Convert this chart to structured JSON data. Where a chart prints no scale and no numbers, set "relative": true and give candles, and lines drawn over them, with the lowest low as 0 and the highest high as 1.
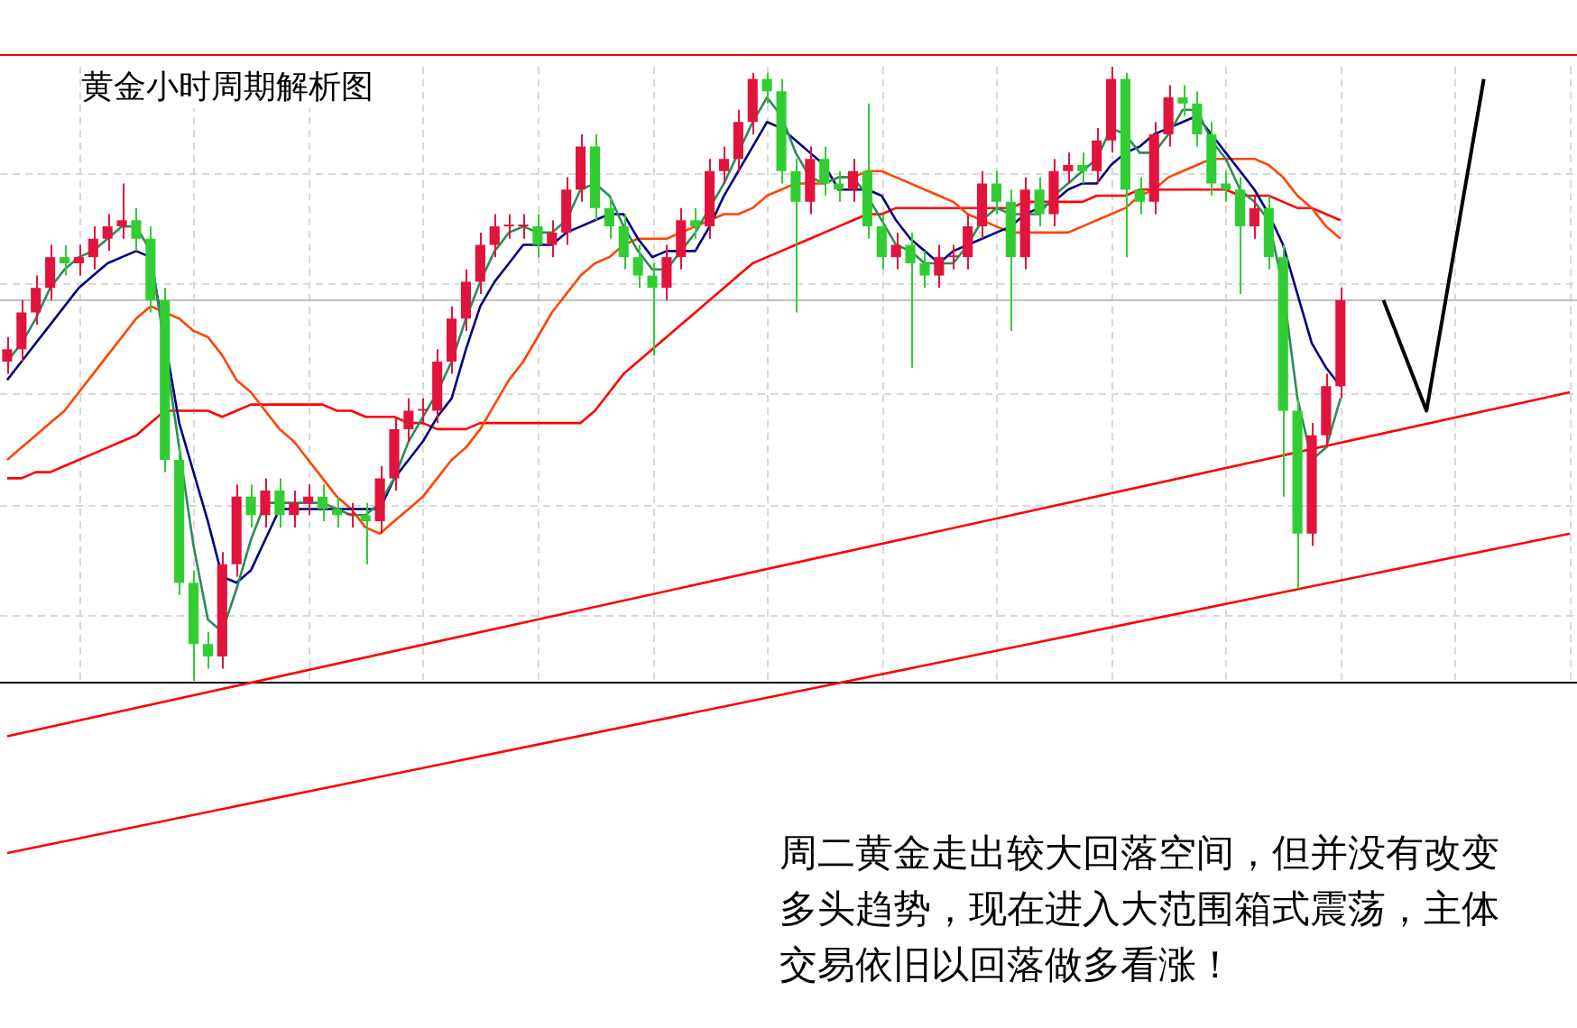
{
  "chart_data": {
    "type": "candlestick",
    "title": "黄金小时周期解析图",
    "relative": true,
    "grid": true,
    "legend": false,
    "marker": "none",
    "annotations": [
      "周二黄金走出较大回落空间，但并没有改变多头趋势，现在进入大范围箱式震荡，主体交易依旧以回落做多看涨！"
    ],
    "categories": [
      null,
      null,
      null,
      null,
      null,
      null,
      null,
      null,
      null,
      null,
      null,
      null,
      null,
      null,
      null,
      null,
      null,
      null,
      null,
      null,
      null,
      null,
      null,
      null,
      null,
      null,
      null,
      null,
      null,
      null,
      null,
      null,
      null,
      null,
      null,
      null,
      null,
      null,
      null,
      null,
      null,
      null,
      null,
      null,
      null,
      null,
      null,
      null,
      null,
      null,
      null,
      null,
      null,
      null,
      null,
      null,
      null,
      null,
      null,
      null,
      null,
      null,
      null,
      null,
      null,
      null,
      null,
      null,
      null,
      null,
      null,
      null,
      null,
      null,
      null,
      null,
      null,
      null,
      null,
      null,
      null,
      null,
      null,
      null,
      null,
      null,
      null,
      null,
      null,
      null,
      null,
      null,
      null,
      null,
      null,
      null,
      null,
      null,
      null,
      null,
      null,
      null,
      null,
      null,
      null,
      null,
      null,
      null,
      null,
      null
    ],
    "ohlc": [
      [
        0.52,
        0.56,
        0.5,
        0.54
      ],
      [
        0.54,
        0.62,
        0.52,
        0.6
      ],
      [
        0.6,
        0.66,
        0.58,
        0.64
      ],
      [
        0.64,
        0.71,
        0.62,
        0.69
      ],
      [
        0.69,
        0.71,
        0.66,
        0.68
      ],
      [
        0.68,
        0.71,
        0.66,
        0.69
      ],
      [
        0.69,
        0.74,
        0.67,
        0.72
      ],
      [
        0.72,
        0.76,
        0.7,
        0.74
      ],
      [
        0.74,
        0.81,
        0.72,
        0.75
      ],
      [
        0.75,
        0.77,
        0.7,
        0.72
      ],
      [
        0.72,
        0.74,
        0.6,
        0.62
      ],
      [
        0.62,
        0.64,
        0.34,
        0.36
      ],
      [
        0.36,
        0.38,
        0.14,
        0.16
      ],
      [
        0.16,
        0.18,
        0,
        0.06
      ],
      [
        0.06,
        0.08,
        0.02,
        0.04
      ],
      [
        0.04,
        0.21,
        0.02,
        0.19
      ],
      [
        0.19,
        0.32,
        0.17,
        0.3
      ],
      [
        0.3,
        0.32,
        0.25,
        0.27
      ],
      [
        0.27,
        0.33,
        0.25,
        0.31
      ],
      [
        0.31,
        0.33,
        0.25,
        0.27
      ],
      [
        0.27,
        0.31,
        0.25,
        0.29
      ],
      [
        0.29,
        0.32,
        0.27,
        0.3
      ],
      [
        0.3,
        0.32,
        0.26,
        0.28
      ],
      [
        0.28,
        0.3,
        0.25,
        0.27
      ],
      [
        0.27,
        0.29,
        0.25,
        0.27
      ],
      [
        0.27,
        0.29,
        0.19,
        0.26
      ],
      [
        0.26,
        0.35,
        0.24,
        0.33
      ],
      [
        0.33,
        0.43,
        0.31,
        0.41
      ],
      [
        0.41,
        0.46,
        0.39,
        0.44
      ],
      [
        0.44,
        0.46,
        0.42,
        0.44
      ],
      [
        0.44,
        0.54,
        0.42,
        0.52
      ],
      [
        0.52,
        0.61,
        0.5,
        0.59
      ],
      [
        0.59,
        0.67,
        0.57,
        0.65
      ],
      [
        0.65,
        0.73,
        0.63,
        0.71
      ],
      [
        0.71,
        0.76,
        0.69,
        0.74
      ],
      [
        0.74,
        0.76,
        0.72,
        0.74
      ],
      [
        0.74,
        0.76,
        0.72,
        0.74
      ],
      [
        0.74,
        0.76,
        0.69,
        0.71
      ],
      [
        0.71,
        0.75,
        0.69,
        0.73
      ],
      [
        0.73,
        0.82,
        0.71,
        0.8
      ],
      [
        0.8,
        0.89,
        0.78,
        0.87
      ],
      [
        0.87,
        0.89,
        0.75,
        0.77
      ],
      [
        0.77,
        0.79,
        0.72,
        0.74
      ],
      [
        0.74,
        0.76,
        0.67,
        0.69
      ],
      [
        0.69,
        0.71,
        0.64,
        0.66
      ],
      [
        0.66,
        0.68,
        0.53,
        0.64
      ],
      [
        0.64,
        0.71,
        0.62,
        0.69
      ],
      [
        0.69,
        0.77,
        0.67,
        0.75
      ],
      [
        0.75,
        0.77,
        0.72,
        0.74
      ],
      [
        0.74,
        0.85,
        0.72,
        0.83
      ],
      [
        0.83,
        0.87,
        0.81,
        0.85
      ],
      [
        0.85,
        0.93,
        0.83,
        0.91
      ],
      [
        0.91,
        0.99,
        0.89,
        0.98
      ],
      [
        0.98,
        0.99,
        0.94,
        0.96
      ],
      [
        0.96,
        0.98,
        0.81,
        0.83
      ],
      [
        0.83,
        0.85,
        0.6,
        0.78
      ],
      [
        0.78,
        0.87,
        0.76,
        0.85
      ],
      [
        0.85,
        0.87,
        0.79,
        0.81
      ],
      [
        0.81,
        0.83,
        0.78,
        0.8
      ],
      [
        0.8,
        0.85,
        0.78,
        0.83
      ],
      [
        0.83,
        0.94,
        0.72,
        0.74
      ],
      [
        0.74,
        0.76,
        0.67,
        0.69
      ],
      [
        0.69,
        0.73,
        0.67,
        0.71
      ],
      [
        0.71,
        0.73,
        0.51,
        0.68
      ],
      [
        0.68,
        0.7,
        0.64,
        0.66
      ],
      [
        0.66,
        0.71,
        0.64,
        0.69
      ],
      [
        0.69,
        0.71,
        0.67,
        0.69
      ],
      [
        0.69,
        0.76,
        0.67,
        0.74
      ],
      [
        0.74,
        0.83,
        0.72,
        0.81
      ],
      [
        0.81,
        0.83,
        0.76,
        0.78
      ],
      [
        0.78,
        0.8,
        0.57,
        0.69
      ],
      [
        0.69,
        0.82,
        0.67,
        0.8
      ],
      [
        0.8,
        0.82,
        0.74,
        0.76
      ],
      [
        0.76,
        0.85,
        0.74,
        0.83
      ],
      [
        0.83,
        0.86,
        0.81,
        0.84
      ],
      [
        0.84,
        0.86,
        0.81,
        0.83
      ],
      [
        0.83,
        0.9,
        0.81,
        0.88
      ],
      [
        0.88,
        1.0,
        0.86,
        0.98
      ],
      [
        0.98,
        0.99,
        0.69,
        0.8
      ],
      [
        0.8,
        0.82,
        0.76,
        0.78
      ],
      [
        0.78,
        0.91,
        0.76,
        0.89
      ],
      [
        0.89,
        0.97,
        0.87,
        0.95
      ],
      [
        0.95,
        0.97,
        0.92,
        0.94
      ],
      [
        0.94,
        0.96,
        0.87,
        0.89
      ],
      [
        0.89,
        0.91,
        0.79,
        0.81
      ],
      [
        0.81,
        0.83,
        0.78,
        0.8
      ],
      [
        0.8,
        0.82,
        0.63,
        0.74
      ],
      [
        0.74,
        0.79,
        0.72,
        0.77
      ],
      [
        0.77,
        0.79,
        0.67,
        0.69
      ],
      [
        0.69,
        0.71,
        0.3,
        0.44
      ],
      [
        0.44,
        0.46,
        0.15,
        0.24
      ],
      [
        0.24,
        0.42,
        0.22,
        0.4
      ],
      [
        0.4,
        0.5,
        0.38,
        0.48
      ],
      [
        0.48,
        0.64,
        0.46,
        0.62
      ],
      null,
      null,
      null,
      null,
      null,
      null,
      null,
      null,
      null,
      null,
      null,
      null,
      null,
      null,
      null,
      null
    ],
    "series": [
      {
        "type": "line",
        "color": "#2e8b57",
        "values": [
          0.52,
          0.55,
          0.59,
          0.64,
          0.67,
          0.69,
          0.7,
          0.72,
          0.74,
          0.74,
          0.7,
          null,
          0.38,
          0.22,
          0.1,
          0.08,
          0.15,
          0.23,
          0.29,
          0.29,
          0.29,
          0.29,
          0.29,
          0.28,
          0.27,
          0.27,
          0.29,
          0.33,
          0.39,
          0.43,
          0.47,
          0.52,
          0.59,
          0.65,
          0.7,
          0.73,
          0.74,
          0.73,
          0.73,
          0.75,
          0.8,
          0.81,
          0.79,
          0.74,
          0.7,
          0.67,
          0.67,
          0.7,
          0.73,
          0.77,
          0.81,
          0.86,
          0.91,
          0.95,
          0.92,
          0.86,
          0.82,
          0.81,
          0.82,
          0.82,
          0.79,
          0.75,
          0.71,
          0.7,
          0.68,
          0.68,
          0.68,
          0.71,
          0.75,
          0.77,
          0.76,
          0.76,
          0.76,
          0.79,
          0.81,
          0.83,
          0.85,
          0.9,
          0.89,
          0.86,
          0.86,
          0.89,
          0.93,
          0.93,
          0.88,
          0.85,
          0.8,
          0.78,
          0.75,
          0.64,
          0.46,
          0.36,
          0.38,
          0.46,
          null,
          null,
          null,
          null,
          null,
          null,
          null,
          null,
          null,
          null,
          null,
          null,
          null,
          null,
          null,
          null
        ]
      },
      {
        "type": "line",
        "color": "#000080",
        "values": [
          0.49,
          0.52,
          0.55,
          0.58,
          0.61,
          0.64,
          0.66,
          0.68,
          0.69,
          0.7,
          0.69,
          null,
          0.42,
          0.34,
          0.26,
          0.17,
          0.16,
          0.18,
          0.23,
          0.28,
          0.28,
          0.28,
          0.28,
          0.28,
          0.28,
          0.28,
          0.28,
          0.33,
          0.36,
          0.39,
          0.43,
          0.46,
          0.54,
          0.61,
          0.65,
          0.68,
          0.71,
          0.71,
          0.71,
          0.73,
          0.74,
          0.75,
          0.76,
          0.76,
          0.72,
          0.69,
          0.7,
          0.7,
          0.7,
          0.74,
          0.79,
          0.83,
          0.87,
          0.91,
          0.9,
          0.88,
          0.86,
          0.84,
          0.8,
          0.8,
          0.8,
          0.79,
          0.75,
          0.72,
          0.7,
          0.68,
          0.7,
          0.71,
          0.72,
          0.73,
          0.74,
          0.76,
          0.77,
          0.78,
          0.8,
          0.81,
          0.81,
          0.84,
          0.86,
          0.87,
          0.89,
          0.9,
          0.91,
          0.92,
          0.89,
          0.86,
          0.83,
          0.8,
          0.76,
          0.71,
          0.63,
          0.55,
          0.51,
          0.48,
          null,
          null,
          null,
          null,
          null,
          null,
          null,
          null,
          null,
          null,
          null,
          null,
          null,
          null,
          null,
          null
        ]
      },
      {
        "type": "line",
        "color": "#ff4500",
        "values": [
          0.36,
          0.38,
          0.4,
          0.42,
          0.44,
          0.47,
          0.5,
          0.53,
          0.56,
          0.59,
          0.61,
          0.6,
          0.59,
          0.57,
          0.56,
          0.53,
          0.49,
          0.47,
          0.44,
          0.41,
          0.39,
          0.36,
          0.33,
          0.3,
          0.28,
          0.25,
          0.24,
          0.26,
          0.28,
          0.3,
          0.33,
          0.36,
          0.38,
          0.41,
          0.45,
          0.49,
          0.52,
          0.56,
          0.6,
          0.63,
          0.66,
          0.68,
          0.69,
          0.71,
          0.72,
          0.72,
          0.72,
          0.73,
          0.74,
          0.75,
          0.76,
          0.76,
          0.77,
          0.79,
          0.8,
          0.81,
          0.81,
          0.81,
          0.82,
          0.82,
          0.83,
          0.83,
          0.82,
          0.81,
          0.8,
          0.79,
          0.78,
          0.76,
          0.75,
          0.74,
          0.73,
          0.73,
          0.73,
          0.73,
          0.73,
          0.74,
          0.75,
          0.76,
          0.77,
          0.79,
          0.8,
          0.82,
          0.83,
          0.84,
          0.85,
          0.85,
          0.85,
          0.85,
          0.84,
          0.82,
          0.79,
          0.77,
          0.74,
          0.72,
          null,
          null,
          null,
          null,
          null,
          null,
          null,
          null,
          null,
          null,
          null,
          null,
          null,
          null,
          null,
          null
        ]
      },
      {
        "type": "line",
        "color": "#ff0000",
        "values": [
          0.33,
          0.33,
          0.34,
          0.34,
          0.35,
          0.36,
          0.37,
          0.38,
          0.39,
          0.4,
          0.42,
          0.44,
          0.44,
          0.44,
          0.44,
          0.43,
          0.44,
          0.45,
          0.45,
          0.45,
          0.45,
          0.45,
          0.45,
          0.44,
          0.44,
          0.43,
          0.43,
          0.43,
          0.42,
          0.42,
          0.41,
          0.41,
          0.41,
          0.42,
          0.42,
          0.42,
          0.42,
          0.42,
          0.42,
          0.42,
          0.42,
          0.44,
          0.47,
          0.5,
          0.52,
          0.54,
          0.56,
          0.58,
          0.6,
          0.62,
          0.64,
          0.66,
          0.68,
          0.69,
          0.7,
          0.71,
          0.72,
          0.73,
          0.74,
          0.75,
          0.76,
          0.76,
          0.77,
          0.77,
          0.77,
          0.77,
          0.77,
          0.77,
          0.77,
          0.77,
          0.77,
          0.78,
          0.78,
          0.78,
          0.78,
          0.78,
          0.79,
          0.79,
          0.79,
          0.8,
          0.8,
          0.8,
          0.8,
          0.8,
          0.8,
          0.8,
          0.79,
          0.79,
          0.79,
          0.78,
          0.77,
          0.77,
          0.76,
          0.75,
          null,
          null,
          null,
          null,
          null,
          null,
          null,
          null,
          null,
          null,
          null,
          null,
          null,
          null,
          null,
          null
        ]
      },
      {
        "type": "line",
        "color": "#ff0000",
        "values": [
          -0.09,
          null,
          null,
          null,
          null,
          null,
          null,
          null,
          null,
          null,
          null,
          null,
          null,
          null,
          null,
          null,
          null,
          null,
          null,
          null,
          null,
          null,
          null,
          null,
          null,
          null,
          null,
          null,
          null,
          null,
          null,
          null,
          null,
          null,
          null,
          null,
          null,
          null,
          null,
          null,
          null,
          null,
          null,
          null,
          null,
          null,
          null,
          null,
          null,
          null,
          null,
          null,
          null,
          null,
          null,
          null,
          null,
          null,
          null,
          null,
          null,
          null,
          null,
          null,
          null,
          null,
          null,
          null,
          null,
          null,
          null,
          null,
          null,
          null,
          null,
          null,
          null,
          null,
          null,
          null,
          null,
          null,
          null,
          null,
          null,
          null,
          null,
          null,
          null,
          null,
          null,
          null,
          null,
          null,
          null,
          null,
          null,
          null,
          null,
          null,
          null,
          null,
          null,
          null,
          null,
          null,
          null,
          null,
          null,
          0.47
        ]
      },
      {
        "type": "line",
        "color": "#ff0000",
        "values": [
          -0.28,
          null,
          null,
          null,
          null,
          null,
          null,
          null,
          null,
          null,
          null,
          null,
          null,
          null,
          null,
          null,
          null,
          null,
          null,
          null,
          null,
          null,
          null,
          null,
          null,
          null,
          null,
          null,
          null,
          null,
          null,
          null,
          null,
          null,
          null,
          null,
          null,
          null,
          null,
          null,
          null,
          null,
          null,
          null,
          null,
          null,
          null,
          null,
          null,
          null,
          null,
          null,
          null,
          null,
          null,
          null,
          null,
          null,
          null,
          null,
          null,
          null,
          null,
          null,
          null,
          null,
          null,
          null,
          null,
          null,
          null,
          null,
          null,
          null,
          null,
          null,
          null,
          null,
          null,
          null,
          null,
          null,
          null,
          null,
          null,
          null,
          null,
          null,
          null,
          null,
          null,
          null,
          null,
          null,
          null,
          null,
          null,
          null,
          null,
          null,
          null,
          null,
          null,
          null,
          null,
          null,
          null,
          null,
          null,
          0.24
        ]
      },
      {
        "type": "line",
        "color": "#000000",
        "values": [
          null,
          null,
          null,
          null,
          null,
          null,
          null,
          null,
          null,
          null,
          null,
          null,
          null,
          null,
          null,
          null,
          null,
          null,
          null,
          null,
          null,
          null,
          null,
          null,
          null,
          null,
          null,
          null,
          null,
          null,
          null,
          null,
          null,
          null,
          null,
          null,
          null,
          null,
          null,
          null,
          null,
          null,
          null,
          null,
          null,
          null,
          null,
          null,
          null,
          null,
          null,
          null,
          null,
          null,
          null,
          null,
          null,
          null,
          null,
          null,
          null,
          null,
          null,
          null,
          null,
          null,
          null,
          null,
          null,
          null,
          null,
          null,
          null,
          null,
          null,
          null,
          null,
          null,
          null,
          null,
          null,
          null,
          null,
          null,
          null,
          null,
          null,
          null,
          null,
          null,
          null,
          null,
          null,
          null,
          null,
          null,
          0.62,
          null,
          null,
          0.44,
          null,
          null,
          null,
          0.98,
          null,
          null,
          null,
          null,
          null,
          null
        ]
      }
    ],
    "ref_lines": [
      {
        "axis": "y",
        "value": 0,
        "color": "#000000"
      },
      {
        "axis": "y",
        "value": 0.62,
        "color": "#c0c0c0"
      },
      {
        "axis": "y",
        "value": 1.02,
        "color": "#ff0000"
      }
    ]
  }
}
